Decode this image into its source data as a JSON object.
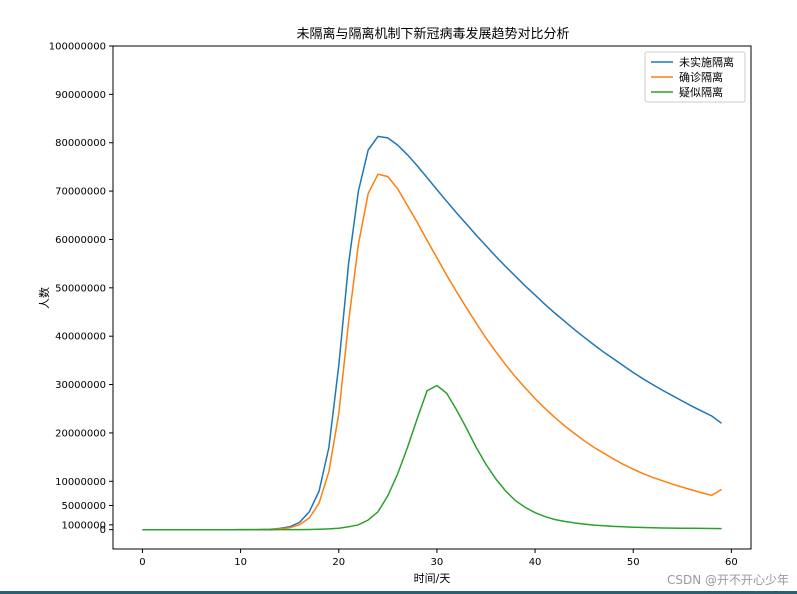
{
  "chart_data": {
    "type": "line",
    "title": "未隔离与隔离机制下新冠病毒发展趋势对比分析",
    "xlabel": "时间/天",
    "ylabel": "人数",
    "xlim": [
      -3,
      62
    ],
    "ylim": [
      -4000000,
      100000000
    ],
    "xticks": [
      0,
      10,
      20,
      30,
      40,
      50,
      60
    ],
    "yticks": [
      0,
      1000000,
      5000000,
      10000000,
      20000000,
      30000000,
      40000000,
      50000000,
      60000000,
      70000000,
      80000000,
      90000000,
      100000000
    ],
    "ytick_labels": [
      "0",
      "1000000",
      "5000000",
      "10000000",
      "20000000",
      "30000000",
      "40000000",
      "50000000",
      "60000000",
      "70000000",
      "80000000",
      "90000000",
      "100000000"
    ],
    "legend_position": "top-right",
    "x": [
      0,
      1,
      2,
      3,
      4,
      5,
      6,
      7,
      8,
      9,
      10,
      11,
      12,
      13,
      14,
      15,
      16,
      17,
      18,
      19,
      20,
      21,
      22,
      23,
      24,
      25,
      26,
      27,
      28,
      29,
      30,
      31,
      32,
      33,
      34,
      35,
      36,
      37,
      38,
      39,
      40,
      41,
      42,
      43,
      44,
      45,
      46,
      47,
      48,
      49,
      50,
      51,
      52,
      53,
      54,
      55,
      56,
      57,
      58,
      59
    ],
    "series": [
      {
        "name": "未实施隔离",
        "color": "#1f77b4",
        "values": [
          0,
          0,
          0,
          0,
          0,
          0,
          0,
          0,
          0,
          0,
          10000,
          20000,
          40000,
          100000,
          250000,
          600000,
          1500000,
          3700000,
          8000000,
          17000000,
          34000000,
          55000000,
          70000000,
          78500000,
          81300000,
          81000000,
          79500000,
          77500000,
          75200000,
          72800000,
          70300000,
          67900000,
          65500000,
          63200000,
          60900000,
          58700000,
          56500000,
          54400000,
          52400000,
          50400000,
          48500000,
          46600000,
          44800000,
          43100000,
          41400000,
          39800000,
          38200000,
          36700000,
          35300000,
          33900000,
          32500000,
          31200000,
          30000000,
          28800000,
          27700000,
          26600000,
          25500000,
          24500000,
          23500000,
          22000000
        ]
      },
      {
        "name": "确诊隔离",
        "color": "#ff7f0e",
        "values": [
          0,
          0,
          0,
          0,
          0,
          0,
          0,
          0,
          0,
          0,
          5000,
          10000,
          20000,
          50000,
          150000,
          400000,
          1000000,
          2400000,
          5500000,
          12000000,
          24000000,
          43000000,
          59000000,
          69500000,
          73500000,
          73000000,
          70500000,
          67000000,
          63500000,
          59800000,
          56200000,
          52600000,
          49200000,
          45900000,
          42700000,
          39600000,
          36800000,
          34100000,
          31600000,
          29300000,
          27100000,
          25100000,
          23200000,
          21500000,
          19900000,
          18400000,
          17000000,
          15800000,
          14600000,
          13500000,
          12500000,
          11600000,
          10800000,
          10100000,
          9400000,
          8800000,
          8200000,
          7600000,
          7100000,
          8300000
        ]
      },
      {
        "name": "疑似隔离",
        "color": "#2ca02c",
        "values": [
          0,
          0,
          0,
          0,
          0,
          0,
          0,
          0,
          0,
          0,
          0,
          0,
          0,
          0,
          5000,
          10000,
          20000,
          40000,
          80000,
          150000,
          300000,
          600000,
          1000000,
          2000000,
          3700000,
          7000000,
          11500000,
          17000000,
          23000000,
          28700000,
          29800000,
          28200000,
          24800000,
          21000000,
          17000000,
          13500000,
          10500000,
          8000000,
          6000000,
          4600000,
          3500000,
          2700000,
          2100000,
          1700000,
          1400000,
          1150000,
          950000,
          800000,
          680000,
          580000,
          500000,
          440000,
          390000,
          350000,
          320000,
          290000,
          270000,
          250000,
          235000,
          220000
        ]
      }
    ]
  },
  "watermark": "CSDN @开不开心少年"
}
